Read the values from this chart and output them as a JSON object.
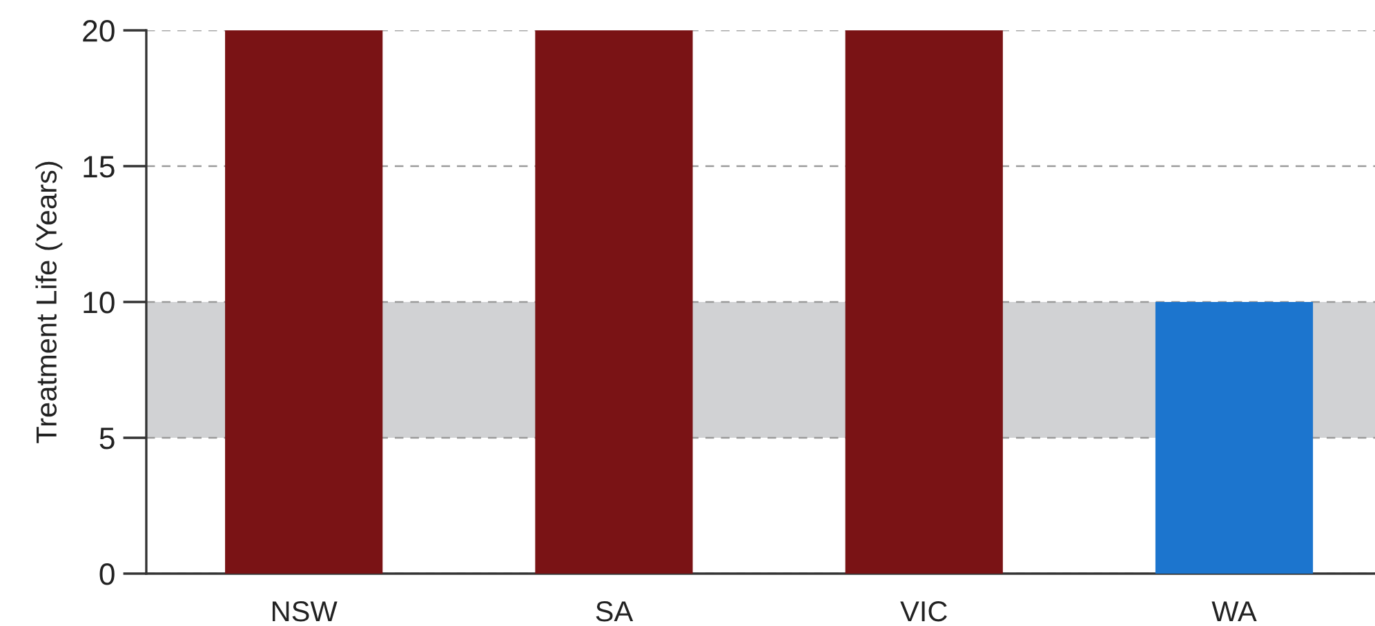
{
  "chart_data": {
    "type": "bar",
    "ylabel": "Treatment Life (Years)",
    "categories": [
      "NSW",
      "SA",
      "VIC",
      "WA"
    ],
    "values": [
      20,
      20,
      20,
      10
    ],
    "colors": [
      "#7a1315",
      "#7a1315",
      "#7a1315",
      "#1c75ce"
    ],
    "ylim": [
      0,
      20
    ],
    "yticks": [
      0,
      5,
      10,
      15,
      20
    ],
    "bands": [
      {
        "axis": "y",
        "from": 5,
        "to": 10,
        "color": "#d1d2d4"
      }
    ],
    "grid": "y"
  }
}
